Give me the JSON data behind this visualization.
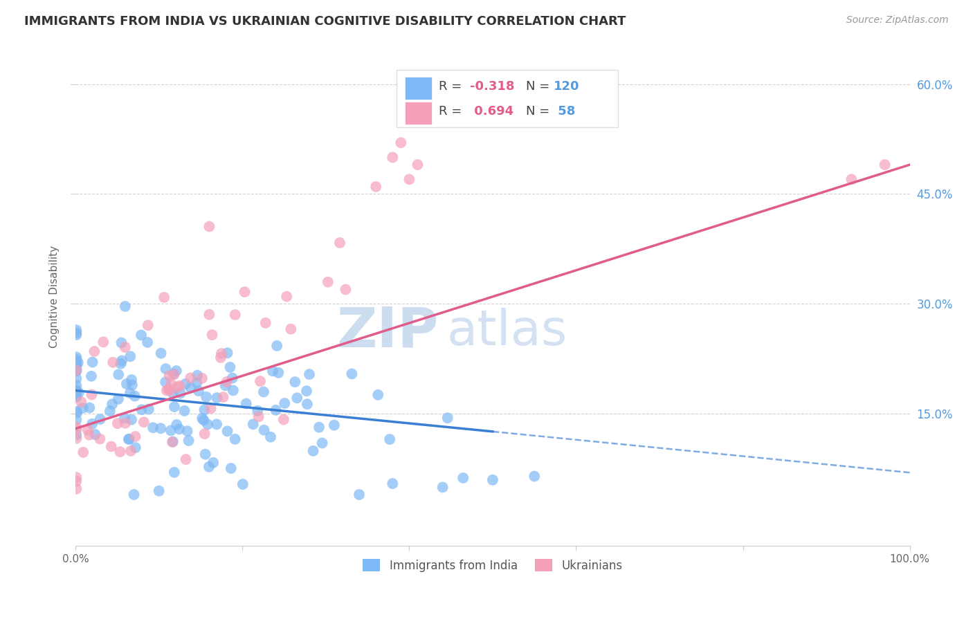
{
  "title": "IMMIGRANTS FROM INDIA VS UKRAINIAN COGNITIVE DISABILITY CORRELATION CHART",
  "source": "Source: ZipAtlas.com",
  "ylabel": "Cognitive Disability",
  "xlim": [
    0,
    1.0
  ],
  "ylim": [
    -0.03,
    0.65
  ],
  "yticks": [
    0.15,
    0.3,
    0.45,
    0.6
  ],
  "yticklabels": [
    "15.0%",
    "30.0%",
    "45.0%",
    "60.0%"
  ],
  "india_color": "#7eb8f5",
  "ukraine_color": "#f5a0b8",
  "india_R": -0.318,
  "india_N": 120,
  "ukraine_R": 0.694,
  "ukraine_N": 58,
  "india_line_color": "#3a7fd4",
  "ukraine_line_color": "#e05c8a",
  "india_line_solid_end": 0.5,
  "watermark_zip": "ZIP",
  "watermark_atlas": "atlas",
  "background_color": "#ffffff",
  "grid_color": "#cccccc",
  "title_fontsize": 13,
  "tick_label_color_y": "#5599dd",
  "legend_R_color": "#e05c8a",
  "legend_N_color": "#5599dd",
  "legend_box_color": "#dddddd"
}
